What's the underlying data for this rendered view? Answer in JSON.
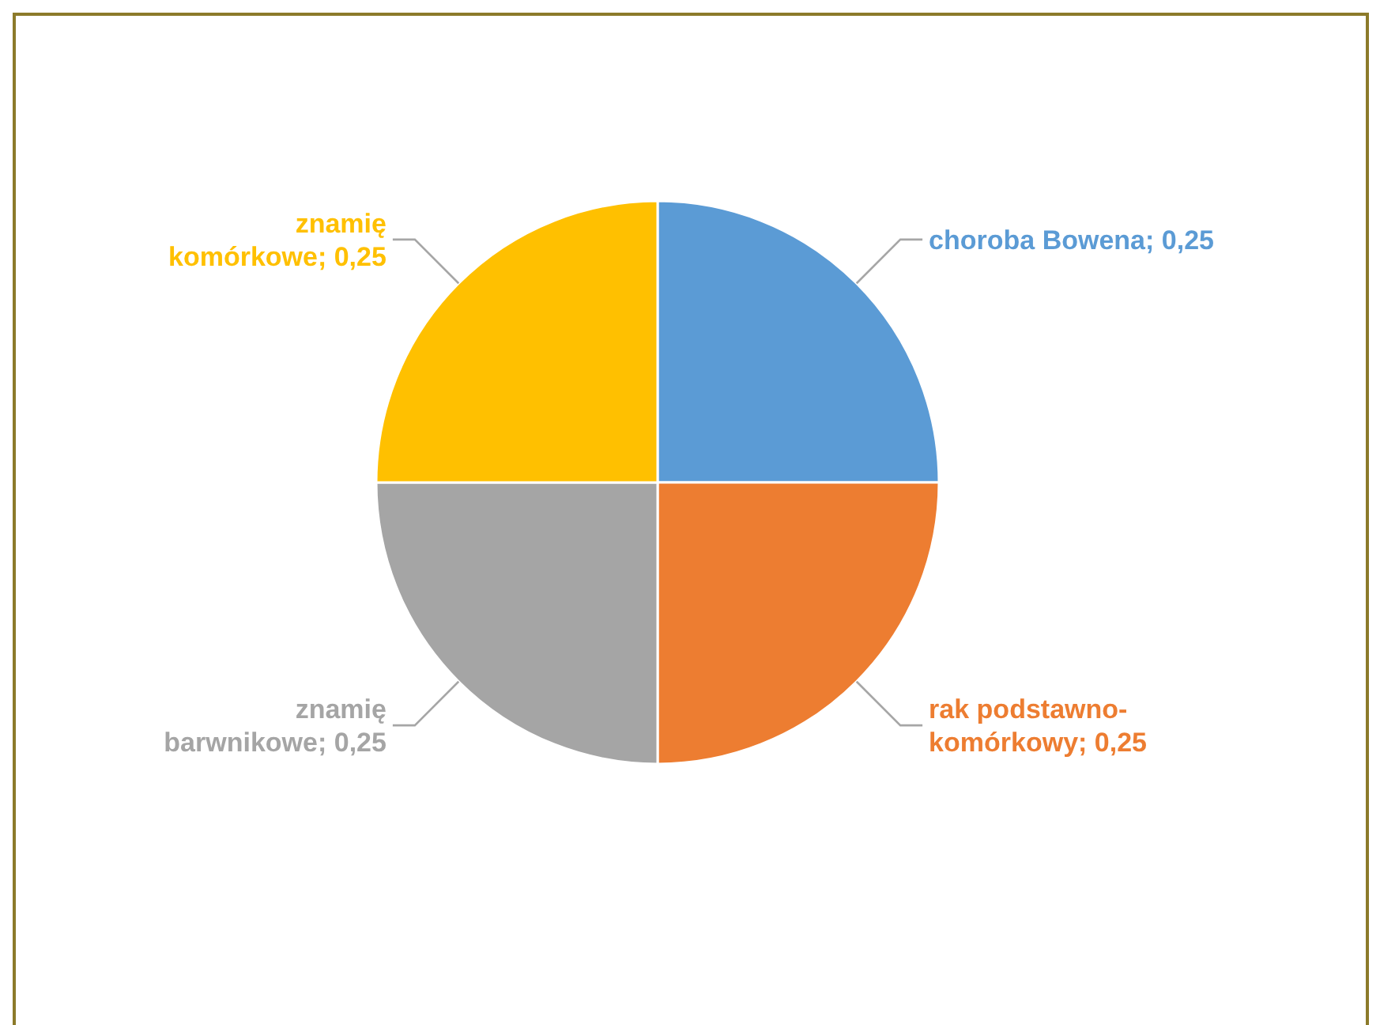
{
  "chart_data": {
    "type": "pie",
    "categories": [
      "choroba Bowena",
      "rak podstawno-komórkowy",
      "znamię barwnikowe",
      "znamię komórkowe"
    ],
    "values": [
      0.25,
      0.25,
      0.25,
      0.25
    ],
    "value_labels": [
      "0,25",
      "0,25",
      "0,25",
      "0,25"
    ],
    "colors": [
      "#5b9bd5",
      "#ed7d31",
      "#a5a5a5",
      "#ffc000"
    ]
  }
}
